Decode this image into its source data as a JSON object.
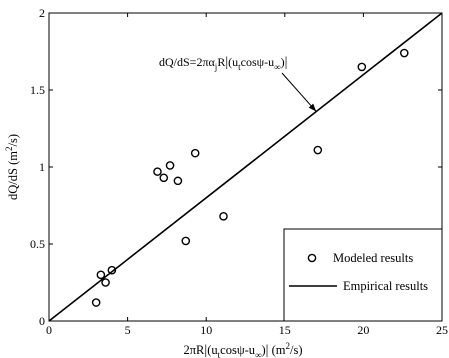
{
  "chart_data": {
    "type": "scatter",
    "xlabel": "2πR|(u_t cosψ-u_∞)| (m²/s)",
    "ylabel": "dQ/dS (m²/s)",
    "xlim": [
      0,
      25
    ],
    "ylim": [
      0,
      2
    ],
    "xticks": [
      0,
      5,
      10,
      15,
      20,
      25
    ],
    "yticks": [
      0,
      0.5,
      1,
      1.5,
      2
    ],
    "grid": false,
    "legend_position": "bottom-right",
    "series": [
      {
        "name": "Modeled results",
        "kind": "scatter",
        "marker": "open-circle",
        "x": [
          3.0,
          3.3,
          3.6,
          4.0,
          6.9,
          7.3,
          7.7,
          8.2,
          8.7,
          9.3,
          11.1,
          17.1,
          19.9,
          22.6
        ],
        "y": [
          0.12,
          0.3,
          0.25,
          0.33,
          0.97,
          0.93,
          1.01,
          0.91,
          0.52,
          1.09,
          0.68,
          1.11,
          1.65,
          1.74
        ]
      },
      {
        "name": "Empirical results",
        "kind": "line",
        "x": [
          0,
          25
        ],
        "y": [
          0,
          2
        ]
      }
    ],
    "annotation": {
      "text": "dQ/dS=2πα_j R|(u_t cosψ-u_∞)|",
      "arrow_to": [
        17.0,
        1.36
      ]
    }
  }
}
